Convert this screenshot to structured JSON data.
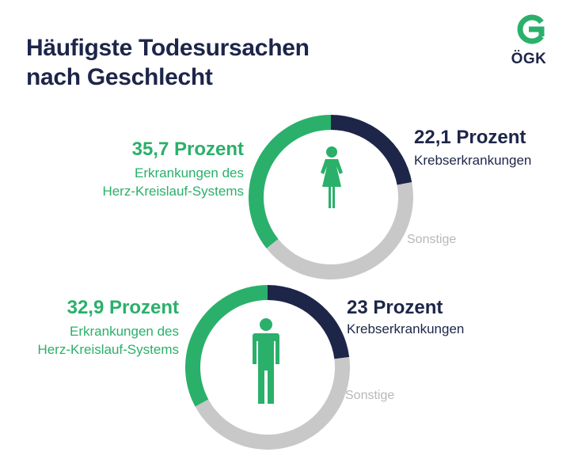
{
  "title": "Häufigste Todesursachen nach Geschlecht",
  "logo": {
    "text": "ÖGK",
    "icon": "oegk-logo-ring-icon"
  },
  "colors": {
    "cardiovascular": "#2ab06a",
    "cancer": "#1d2549",
    "other": "#c8c8c8",
    "other_label": "#b8b8b8"
  },
  "chart_data": [
    {
      "type": "pie",
      "group": "female",
      "icon": "female-figure-icon",
      "slices": [
        {
          "key": "cardiovascular",
          "value": 35.7,
          "value_label": "35,7 Prozent",
          "label": "Erkrankungen des Herz-Kreislauf-Systems",
          "label_lines": [
            "Erkrankungen des",
            "Herz-Kreislauf-Systems"
          ]
        },
        {
          "key": "cancer",
          "value": 22.1,
          "value_label": "22,1 Prozent",
          "label": "Krebserkrankungen"
        },
        {
          "key": "other",
          "value": 42.2,
          "label": "Sonstige"
        }
      ]
    },
    {
      "type": "pie",
      "group": "male",
      "icon": "male-figure-icon",
      "slices": [
        {
          "key": "cardiovascular",
          "value": 32.9,
          "value_label": "32,9 Prozent",
          "label": "Erkrankungen des Herz-Kreislauf-Systems",
          "label_lines": [
            "Erkrankungen des",
            "Herz-Kreislauf-Systems"
          ]
        },
        {
          "key": "cancer",
          "value": 23,
          "value_label": "23 Prozent",
          "label": "Krebserkrankungen"
        },
        {
          "key": "other",
          "value": 44.1,
          "label": "Sonstige"
        }
      ]
    }
  ]
}
